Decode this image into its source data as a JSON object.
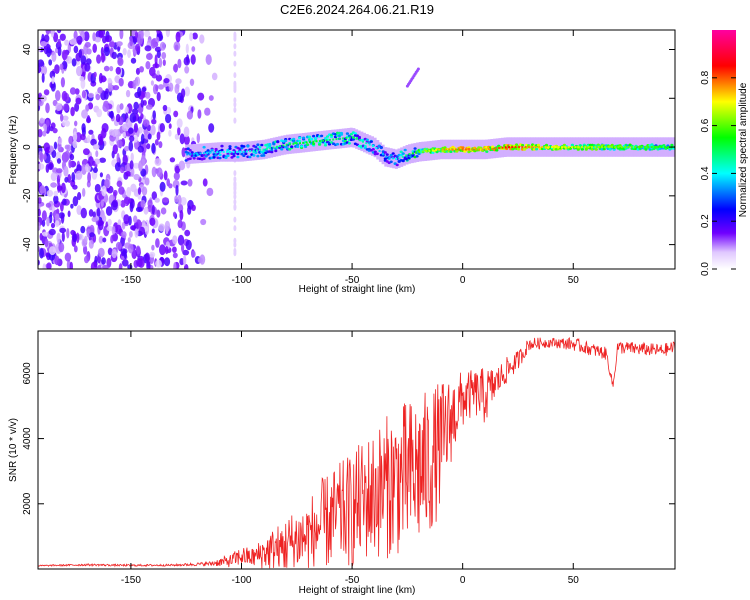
{
  "chart_data": [
    {
      "type": "heatmap",
      "title": "C2E6.2024.264.06.21.R19",
      "xlabel": "Height of straight line (km)",
      "ylabel": "Frequency (Hz)",
      "xlim": [
        -192,
        96
      ],
      "ylim": [
        -50,
        48
      ],
      "xticks": [
        -150,
        -100,
        -50,
        0,
        50
      ],
      "yticks": [
        -40,
        -20,
        0,
        20,
        40
      ],
      "colorbar": {
        "label": "Normalized spectral amplitude",
        "range": [
          0.0,
          1.0
        ],
        "ticks": [
          0.0,
          0.2,
          0.4,
          0.6,
          0.8
        ],
        "tick_labels": [
          "0.0",
          "0.2",
          "0.4",
          "0.6",
          "0.8"
        ],
        "colors": [
          "#ffffff",
          "#7000ff",
          "#0000ff",
          "#00ffff",
          "#00ff00",
          "#ffff00",
          "#ff0000",
          "#ff00a0"
        ]
      },
      "ridge": {
        "x": [
          -125,
          -110,
          -100,
          -90,
          -80,
          -70,
          -60,
          -50,
          -45,
          -40,
          -35,
          -30,
          -25,
          -20,
          -10,
          0,
          10,
          20,
          40,
          60,
          80,
          96
        ],
        "y": [
          -3,
          -2,
          -2,
          -1,
          1,
          2,
          3,
          4,
          2,
          0,
          -4,
          -5,
          -3,
          -2,
          -1,
          -1,
          -1,
          0,
          0,
          0,
          0,
          0
        ],
        "amplitude": [
          0.35,
          0.4,
          0.4,
          0.45,
          0.5,
          0.55,
          0.5,
          0.5,
          0.45,
          0.4,
          0.35,
          0.4,
          0.5,
          0.6,
          0.75,
          0.8,
          0.75,
          0.85,
          0.7,
          0.65,
          0.6,
          0.55
        ]
      },
      "noise_region": {
        "x": [
          -192,
          -110
        ],
        "y": [
          -50,
          48
        ]
      },
      "streak": {
        "x": [
          -25,
          -20
        ],
        "y": [
          25,
          32
        ]
      }
    },
    {
      "type": "line",
      "xlabel": "Height of straight line (km)",
      "ylabel": "SNR (10 * v/v)",
      "xlim": [
        -192,
        96
      ],
      "ylim": [
        0,
        7300
      ],
      "xticks": [
        -150,
        -100,
        -50,
        0,
        50
      ],
      "yticks": [
        2000,
        4000,
        6000
      ],
      "color": "#ee2222",
      "x": [
        -192,
        -170,
        -150,
        -130,
        -115,
        -105,
        -100,
        -95,
        -90,
        -85,
        -80,
        -75,
        -70,
        -65,
        -60,
        -55,
        -50,
        -45,
        -40,
        -35,
        -30,
        -25,
        -20,
        -15,
        -10,
        -5,
        0,
        5,
        10,
        15,
        20,
        25,
        30,
        40,
        50,
        60,
        65,
        68,
        70,
        80,
        90,
        96
      ],
      "y": [
        100,
        130,
        110,
        120,
        160,
        250,
        400,
        350,
        500,
        600,
        700,
        900,
        1000,
        1300,
        1500,
        1700,
        1800,
        2100,
        2300,
        2500,
        2700,
        2800,
        3000,
        3200,
        3800,
        4600,
        5200,
        5400,
        5300,
        5700,
        6100,
        6400,
        6900,
        6950,
        6900,
        6700,
        6600,
        5600,
        6800,
        6750,
        6700,
        6800
      ],
      "spread": [
        20,
        30,
        30,
        30,
        60,
        200,
        300,
        300,
        500,
        700,
        900,
        1000,
        1100,
        1400,
        1500,
        1600,
        1800,
        1900,
        2000,
        2200,
        2300,
        2400,
        2400,
        2300,
        2000,
        1300,
        900,
        700,
        900,
        500,
        400,
        300,
        200,
        150,
        200,
        200,
        200,
        100,
        200,
        200,
        200,
        200
      ]
    }
  ]
}
